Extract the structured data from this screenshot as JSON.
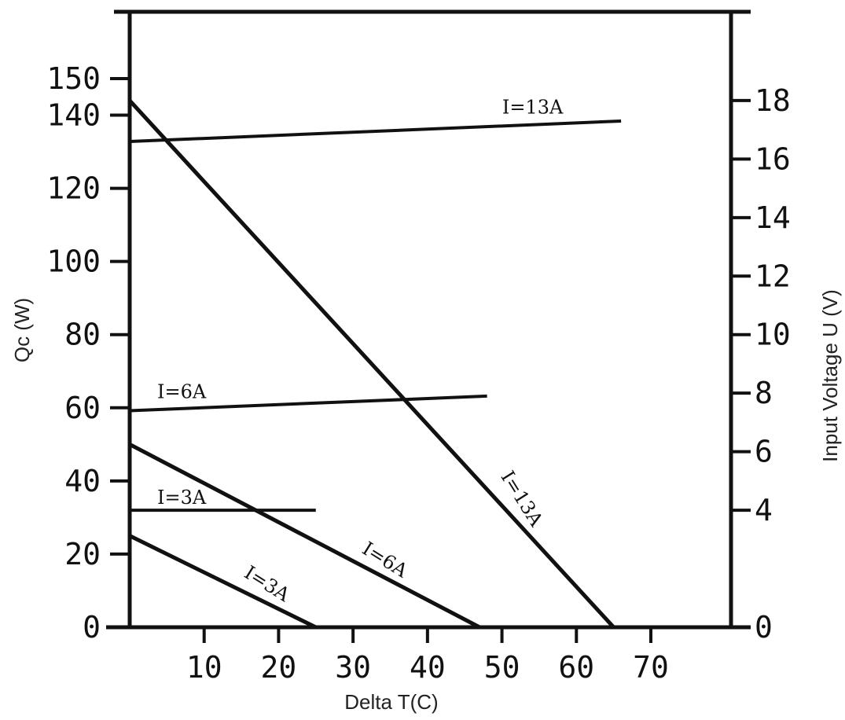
{
  "chart_data": {
    "type": "line",
    "xlabel": "Delta T(C)",
    "ylabel_left": "Qc (W)",
    "ylabel_right": "Input Voltage U (V)",
    "xlim": [
      0,
      80
    ],
    "ylim_left": [
      0,
      160
    ],
    "ylim_right": [
      0,
      20
    ],
    "x_ticks": [
      10,
      20,
      30,
      40,
      50,
      60,
      70
    ],
    "y_ticks_left": [
      0,
      20,
      40,
      60,
      80,
      100,
      120,
      140,
      150
    ],
    "y_ticks_right": [
      0,
      4,
      6,
      8,
      10,
      12,
      14,
      16,
      18
    ],
    "grid": false,
    "series": [
      {
        "name": "I=13A",
        "axis": "left",
        "kind": "Qc",
        "x": [
          0,
          65
        ],
        "values": [
          144,
          0
        ]
      },
      {
        "name": "I=6A",
        "axis": "left",
        "kind": "Qc",
        "x": [
          0,
          47
        ],
        "values": [
          50,
          0
        ]
      },
      {
        "name": "I=3A",
        "axis": "left",
        "kind": "Qc",
        "x": [
          0,
          25
        ],
        "values": [
          25,
          0
        ]
      },
      {
        "name": "I=13A",
        "axis": "right",
        "kind": "U",
        "x": [
          0,
          66
        ],
        "values": [
          16.6,
          17.3
        ]
      },
      {
        "name": "I=6A",
        "axis": "right",
        "kind": "U",
        "x": [
          0,
          48
        ],
        "values": [
          7.4,
          7.9
        ]
      },
      {
        "name": "I=3A",
        "axis": "right",
        "kind": "U",
        "x": [
          0,
          25
        ],
        "values": [
          4.0,
          4.0
        ]
      }
    ]
  }
}
